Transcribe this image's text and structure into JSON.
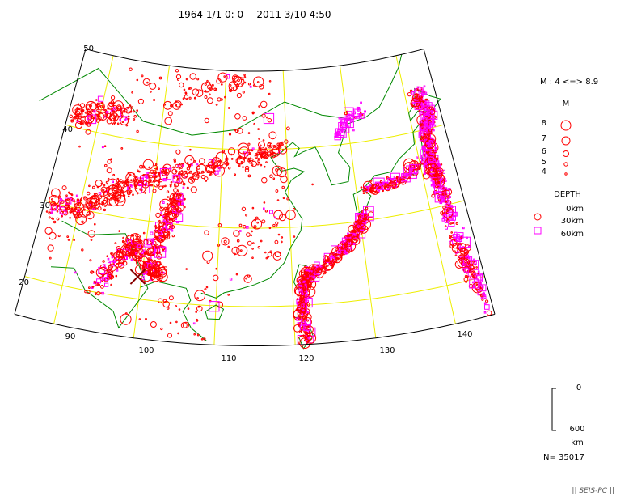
{
  "header": {
    "title": "1964 1/1 0: 0 -- 2011 3/10 4:50"
  },
  "map": {
    "lat_labels": [
      "50",
      "40",
      "30",
      "20"
    ],
    "lon_labels": [
      "90",
      "100",
      "110",
      "120",
      "130",
      "140"
    ]
  },
  "legend": {
    "range": "M : 4 <=> 8.9",
    "magnitude_title": "M",
    "magnitudes": [
      "8",
      "7",
      "6",
      "5",
      "4"
    ],
    "depth_title": "DEPTH",
    "depths": [
      "0km",
      "30km",
      "60km"
    ]
  },
  "scale": {
    "top": "0",
    "bottom": "600",
    "unit": "km"
  },
  "footer": {
    "count": "N= 35017",
    "brand": "|| SEIS-PC ||"
  }
}
